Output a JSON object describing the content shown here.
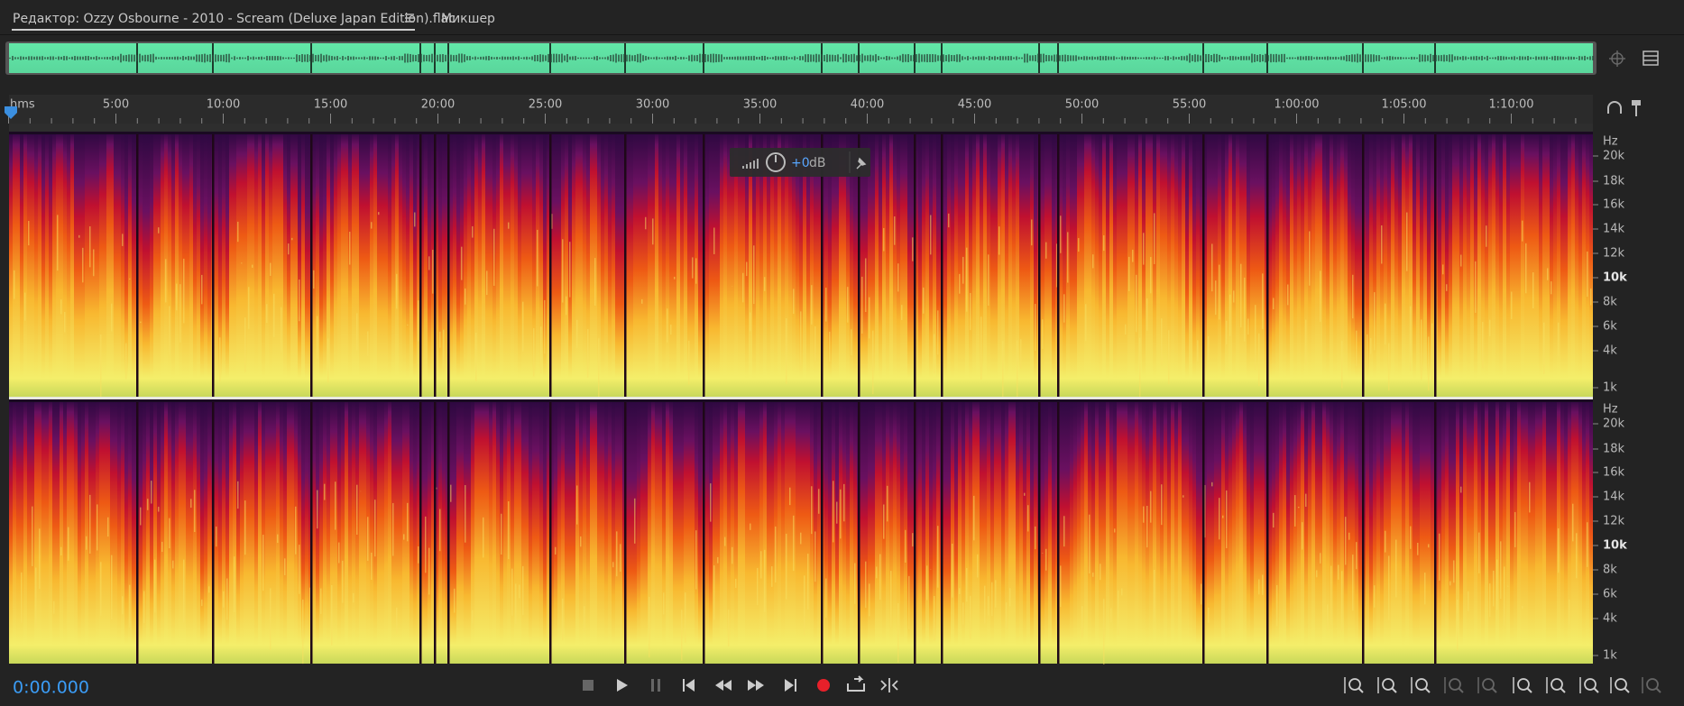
{
  "tabs": {
    "editor": "Редактор: Ozzy Osbourne - 2010 - Scream (Deluxe Japan Edition).flac",
    "mixer": "Микшер"
  },
  "ruler": {
    "labels": [
      "hms",
      "5:00",
      "10:00",
      "15:00",
      "20:00",
      "25:00",
      "30:00",
      "35:00",
      "40:00",
      "45:00",
      "50:00",
      "55:00",
      "1:00:00",
      "1:05:00",
      "1:10:00"
    ]
  },
  "frequency_scale": {
    "unit": "Hz",
    "labels": [
      "20k",
      "18k",
      "16k",
      "14k",
      "12k",
      "10k",
      "8k",
      "6k",
      "4k",
      "1k"
    ]
  },
  "hud": {
    "gain": "+0",
    "unit": "dB"
  },
  "time_display": "0:00.000"
}
